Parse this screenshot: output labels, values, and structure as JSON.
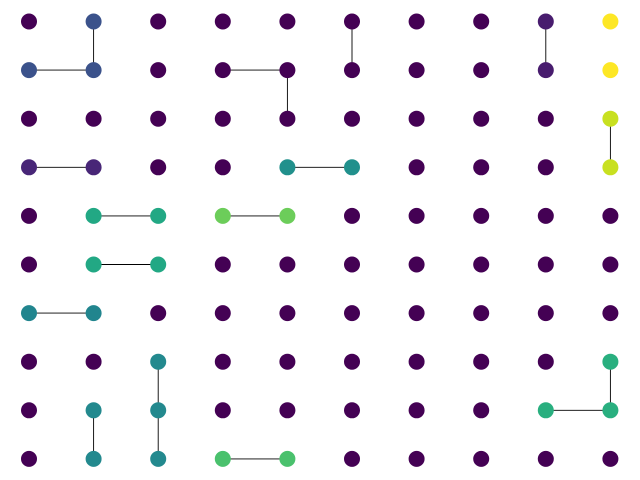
{
  "chart_data": {
    "type": "graph",
    "title": "",
    "layout": "grid",
    "rows": 10,
    "cols": 10,
    "colormap": "viridis",
    "axes_visible": false,
    "edge_color": "#000000",
    "nodes": [
      {
        "row": 0,
        "col": 0,
        "color": "#440154"
      },
      {
        "row": 0,
        "col": 1,
        "color": "#3b528b"
      },
      {
        "row": 0,
        "col": 2,
        "color": "#440154"
      },
      {
        "row": 0,
        "col": 3,
        "color": "#440154"
      },
      {
        "row": 0,
        "col": 4,
        "color": "#440154"
      },
      {
        "row": 0,
        "col": 5,
        "color": "#440154"
      },
      {
        "row": 0,
        "col": 6,
        "color": "#440154"
      },
      {
        "row": 0,
        "col": 7,
        "color": "#440154"
      },
      {
        "row": 0,
        "col": 8,
        "color": "#481c6e"
      },
      {
        "row": 0,
        "col": 9,
        "color": "#fde725"
      },
      {
        "row": 1,
        "col": 0,
        "color": "#3b528b"
      },
      {
        "row": 1,
        "col": 1,
        "color": "#3b528b"
      },
      {
        "row": 1,
        "col": 2,
        "color": "#440154"
      },
      {
        "row": 1,
        "col": 3,
        "color": "#440154"
      },
      {
        "row": 1,
        "col": 4,
        "color": "#440154"
      },
      {
        "row": 1,
        "col": 5,
        "color": "#440154"
      },
      {
        "row": 1,
        "col": 6,
        "color": "#440154"
      },
      {
        "row": 1,
        "col": 7,
        "color": "#440154"
      },
      {
        "row": 1,
        "col": 8,
        "color": "#481c6e"
      },
      {
        "row": 1,
        "col": 9,
        "color": "#fde725"
      },
      {
        "row": 2,
        "col": 0,
        "color": "#440154"
      },
      {
        "row": 2,
        "col": 1,
        "color": "#440154"
      },
      {
        "row": 2,
        "col": 2,
        "color": "#440154"
      },
      {
        "row": 2,
        "col": 3,
        "color": "#440154"
      },
      {
        "row": 2,
        "col": 4,
        "color": "#440154"
      },
      {
        "row": 2,
        "col": 5,
        "color": "#440154"
      },
      {
        "row": 2,
        "col": 6,
        "color": "#440154"
      },
      {
        "row": 2,
        "col": 7,
        "color": "#440154"
      },
      {
        "row": 2,
        "col": 8,
        "color": "#440154"
      },
      {
        "row": 2,
        "col": 9,
        "color": "#c8e020"
      },
      {
        "row": 3,
        "col": 0,
        "color": "#482677"
      },
      {
        "row": 3,
        "col": 1,
        "color": "#482677"
      },
      {
        "row": 3,
        "col": 2,
        "color": "#440154"
      },
      {
        "row": 3,
        "col": 3,
        "color": "#440154"
      },
      {
        "row": 3,
        "col": 4,
        "color": "#21908c"
      },
      {
        "row": 3,
        "col": 5,
        "color": "#21908c"
      },
      {
        "row": 3,
        "col": 6,
        "color": "#440154"
      },
      {
        "row": 3,
        "col": 7,
        "color": "#440154"
      },
      {
        "row": 3,
        "col": 8,
        "color": "#440154"
      },
      {
        "row": 3,
        "col": 9,
        "color": "#c8e020"
      },
      {
        "row": 4,
        "col": 0,
        "color": "#440154"
      },
      {
        "row": 4,
        "col": 1,
        "color": "#22a884"
      },
      {
        "row": 4,
        "col": 2,
        "color": "#22a884"
      },
      {
        "row": 4,
        "col": 3,
        "color": "#6ccd5a"
      },
      {
        "row": 4,
        "col": 4,
        "color": "#6ccd5a"
      },
      {
        "row": 4,
        "col": 5,
        "color": "#440154"
      },
      {
        "row": 4,
        "col": 6,
        "color": "#440154"
      },
      {
        "row": 4,
        "col": 7,
        "color": "#440154"
      },
      {
        "row": 4,
        "col": 8,
        "color": "#440154"
      },
      {
        "row": 4,
        "col": 9,
        "color": "#440154"
      },
      {
        "row": 5,
        "col": 0,
        "color": "#440154"
      },
      {
        "row": 5,
        "col": 1,
        "color": "#22a884"
      },
      {
        "row": 5,
        "col": 2,
        "color": "#22a884"
      },
      {
        "row": 5,
        "col": 3,
        "color": "#440154"
      },
      {
        "row": 5,
        "col": 4,
        "color": "#440154"
      },
      {
        "row": 5,
        "col": 5,
        "color": "#440154"
      },
      {
        "row": 5,
        "col": 6,
        "color": "#440154"
      },
      {
        "row": 5,
        "col": 7,
        "color": "#440154"
      },
      {
        "row": 5,
        "col": 8,
        "color": "#440154"
      },
      {
        "row": 5,
        "col": 9,
        "color": "#440154"
      },
      {
        "row": 6,
        "col": 0,
        "color": "#21858e"
      },
      {
        "row": 6,
        "col": 1,
        "color": "#21858e"
      },
      {
        "row": 6,
        "col": 2,
        "color": "#440154"
      },
      {
        "row": 6,
        "col": 3,
        "color": "#440154"
      },
      {
        "row": 6,
        "col": 4,
        "color": "#440154"
      },
      {
        "row": 6,
        "col": 5,
        "color": "#440154"
      },
      {
        "row": 6,
        "col": 6,
        "color": "#440154"
      },
      {
        "row": 6,
        "col": 7,
        "color": "#440154"
      },
      {
        "row": 6,
        "col": 8,
        "color": "#440154"
      },
      {
        "row": 6,
        "col": 9,
        "color": "#440154"
      },
      {
        "row": 7,
        "col": 0,
        "color": "#440154"
      },
      {
        "row": 7,
        "col": 1,
        "color": "#440154"
      },
      {
        "row": 7,
        "col": 2,
        "color": "#23898e"
      },
      {
        "row": 7,
        "col": 3,
        "color": "#440154"
      },
      {
        "row": 7,
        "col": 4,
        "color": "#440154"
      },
      {
        "row": 7,
        "col": 5,
        "color": "#440154"
      },
      {
        "row": 7,
        "col": 6,
        "color": "#440154"
      },
      {
        "row": 7,
        "col": 7,
        "color": "#440154"
      },
      {
        "row": 7,
        "col": 8,
        "color": "#440154"
      },
      {
        "row": 7,
        "col": 9,
        "color": "#29af7f"
      },
      {
        "row": 8,
        "col": 0,
        "color": "#440154"
      },
      {
        "row": 8,
        "col": 1,
        "color": "#23898e"
      },
      {
        "row": 8,
        "col": 2,
        "color": "#23898e"
      },
      {
        "row": 8,
        "col": 3,
        "color": "#440154"
      },
      {
        "row": 8,
        "col": 4,
        "color": "#440154"
      },
      {
        "row": 8,
        "col": 5,
        "color": "#440154"
      },
      {
        "row": 8,
        "col": 6,
        "color": "#440154"
      },
      {
        "row": 8,
        "col": 7,
        "color": "#440154"
      },
      {
        "row": 8,
        "col": 8,
        "color": "#29af7f"
      },
      {
        "row": 8,
        "col": 9,
        "color": "#29af7f"
      },
      {
        "row": 9,
        "col": 0,
        "color": "#440154"
      },
      {
        "row": 9,
        "col": 1,
        "color": "#23898e"
      },
      {
        "row": 9,
        "col": 2,
        "color": "#23898e"
      },
      {
        "row": 9,
        "col": 3,
        "color": "#4ac16d"
      },
      {
        "row": 9,
        "col": 4,
        "color": "#4ac16d"
      },
      {
        "row": 9,
        "col": 5,
        "color": "#440154"
      },
      {
        "row": 9,
        "col": 6,
        "color": "#440154"
      },
      {
        "row": 9,
        "col": 7,
        "color": "#440154"
      },
      {
        "row": 9,
        "col": 8,
        "color": "#440154"
      },
      {
        "row": 9,
        "col": 9,
        "color": "#440154"
      }
    ],
    "edges": [
      {
        "from": [
          0,
          1
        ],
        "to": [
          1,
          1
        ]
      },
      {
        "from": [
          1,
          0
        ],
        "to": [
          1,
          1
        ]
      },
      {
        "from": [
          1,
          3
        ],
        "to": [
          1,
          4
        ]
      },
      {
        "from": [
          1,
          4
        ],
        "to": [
          2,
          4
        ]
      },
      {
        "from": [
          0,
          5
        ],
        "to": [
          1,
          5
        ]
      },
      {
        "from": [
          0,
          8
        ],
        "to": [
          1,
          8
        ]
      },
      {
        "from": [
          2,
          9
        ],
        "to": [
          3,
          9
        ]
      },
      {
        "from": [
          3,
          0
        ],
        "to": [
          3,
          1
        ]
      },
      {
        "from": [
          3,
          4
        ],
        "to": [
          3,
          5
        ]
      },
      {
        "from": [
          4,
          1
        ],
        "to": [
          4,
          2
        ]
      },
      {
        "from": [
          4,
          3
        ],
        "to": [
          4,
          4
        ]
      },
      {
        "from": [
          5,
          1
        ],
        "to": [
          5,
          2
        ]
      },
      {
        "from": [
          6,
          0
        ],
        "to": [
          6,
          1
        ]
      },
      {
        "from": [
          7,
          2
        ],
        "to": [
          8,
          2
        ]
      },
      {
        "from": [
          8,
          2
        ],
        "to": [
          9,
          2
        ]
      },
      {
        "from": [
          8,
          1
        ],
        "to": [
          9,
          1
        ]
      },
      {
        "from": [
          9,
          3
        ],
        "to": [
          9,
          4
        ]
      },
      {
        "from": [
          7,
          9
        ],
        "to": [
          8,
          9
        ]
      },
      {
        "from": [
          8,
          8
        ],
        "to": [
          8,
          9
        ]
      }
    ]
  }
}
